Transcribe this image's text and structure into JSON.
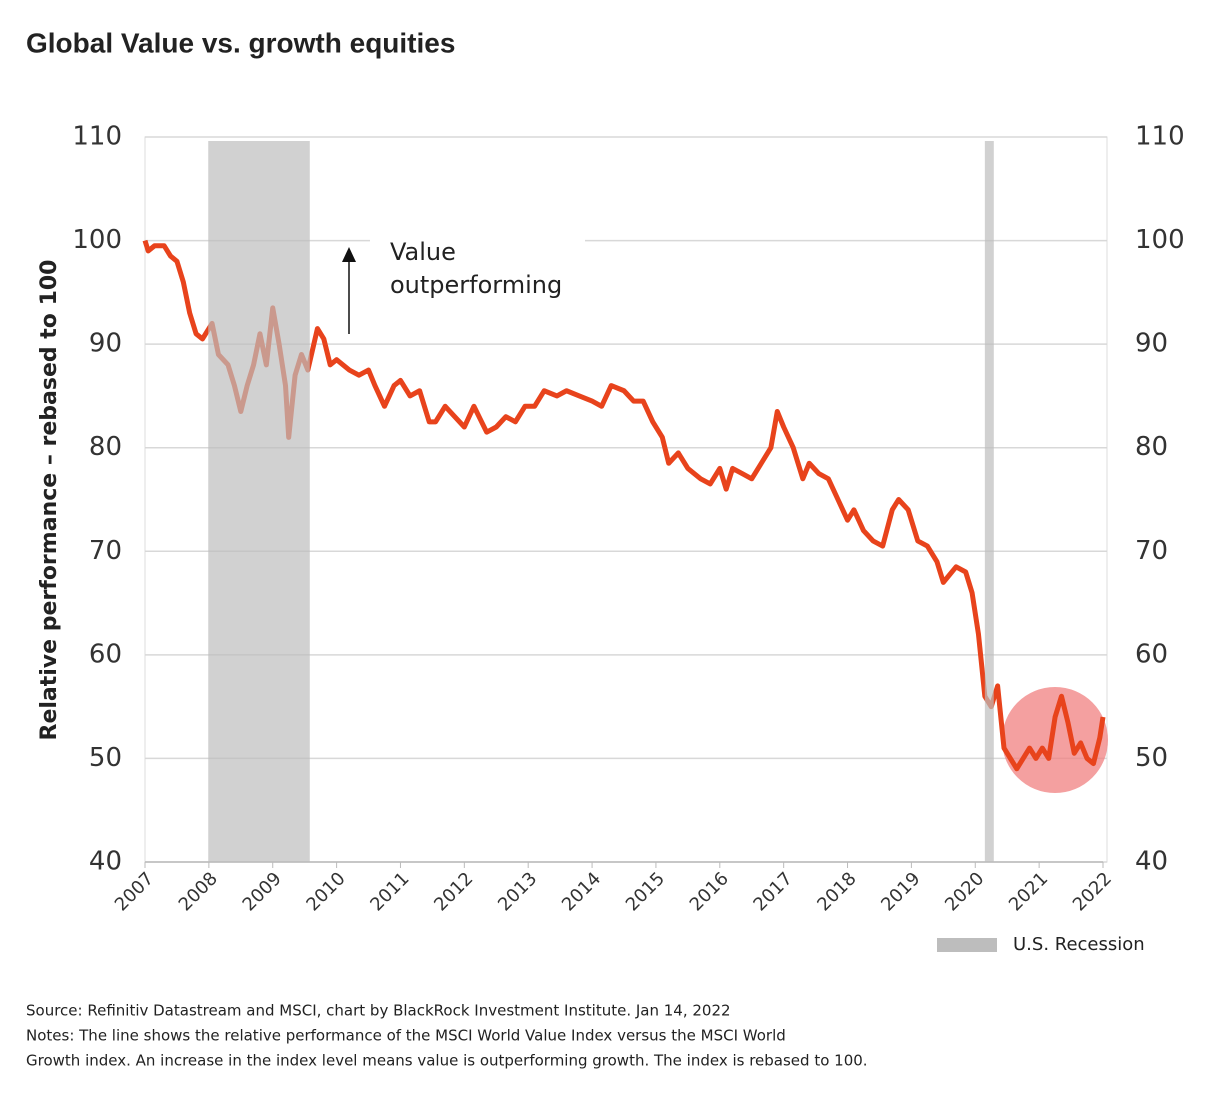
{
  "chart_data": {
    "type": "line",
    "title": "Global Value vs. growth equities",
    "ylabel": "Relative performance – rebased to 100",
    "annotation": [
      "Value",
      "outperforming"
    ],
    "legend_label": "U.S. Recession",
    "recession_color": "#bdbdbd",
    "recessions": [
      [
        2007.99,
        2009.58
      ],
      [
        2020.15,
        2020.29
      ]
    ],
    "xlim": [
      2007,
      2022
    ],
    "xticks": [
      2007,
      2008,
      2009,
      2010,
      2011,
      2012,
      2013,
      2014,
      2015,
      2016,
      2017,
      2018,
      2019,
      2020,
      2021,
      2022
    ],
    "ylim": [
      40,
      110
    ],
    "yticks": [
      40,
      50,
      60,
      70,
      80,
      90,
      100,
      110
    ],
    "grid": true,
    "x": [
      2007.0,
      2007.05,
      2007.15,
      2007.3,
      2007.4,
      2007.5,
      2007.6,
      2007.7,
      2007.8,
      2007.9,
      2008.05,
      2008.15,
      2008.3,
      2008.4,
      2008.5,
      2008.6,
      2008.7,
      2008.8,
      2008.9,
      2009.0,
      2009.1,
      2009.2,
      2009.25,
      2009.35,
      2009.45,
      2009.55,
      2009.7,
      2009.8,
      2009.9,
      2010.0,
      2010.2,
      2010.35,
      2010.5,
      2010.6,
      2010.75,
      2010.9,
      2011.0,
      2011.15,
      2011.3,
      2011.45,
      2011.55,
      2011.7,
      2011.85,
      2012.0,
      2012.15,
      2012.35,
      2012.5,
      2012.65,
      2012.8,
      2012.95,
      2013.1,
      2013.25,
      2013.45,
      2013.6,
      2013.8,
      2014.0,
      2014.15,
      2014.3,
      2014.5,
      2014.65,
      2014.8,
      2014.95,
      2015.1,
      2015.2,
      2015.35,
      2015.5,
      2015.7,
      2015.85,
      2016.0,
      2016.1,
      2016.2,
      2016.35,
      2016.5,
      2016.65,
      2016.8,
      2016.9,
      2017.0,
      2017.15,
      2017.3,
      2017.4,
      2017.55,
      2017.7,
      2017.85,
      2018.0,
      2018.1,
      2018.25,
      2018.4,
      2018.55,
      2018.7,
      2018.8,
      2018.95,
      2019.1,
      2019.25,
      2019.4,
      2019.5,
      2019.7,
      2019.85,
      2019.95,
      2020.05,
      2020.15,
      2020.25,
      2020.35,
      2020.45,
      2020.55,
      2020.65,
      2020.75,
      2020.85,
      2020.95,
      2021.05,
      2021.15,
      2021.25,
      2021.35,
      2021.45,
      2021.55,
      2021.65,
      2021.75,
      2021.85,
      2021.95,
      2022.0
    ],
    "series": [
      {
        "color": "#e8431c",
        "values": [
          100,
          99,
          99.5,
          99.5,
          98.5,
          98,
          96,
          93,
          91,
          90.5,
          92,
          89,
          88,
          86,
          83.5,
          86,
          88,
          91,
          88,
          93.5,
          90,
          86,
          81,
          87,
          89,
          87.5,
          91.5,
          90.5,
          88,
          88.5,
          87.5,
          87,
          87.5,
          86,
          84,
          86,
          86.5,
          85,
          85.5,
          82.5,
          82.5,
          84,
          83,
          82,
          84,
          81.5,
          82,
          83,
          82.5,
          84,
          84,
          85.5,
          85,
          85.5,
          85,
          84.5,
          84,
          86,
          85.5,
          84.5,
          84.5,
          82.5,
          81,
          78.5,
          79.5,
          78,
          77,
          76.5,
          78,
          76,
          78,
          77.5,
          77,
          78.5,
          80,
          83.5,
          82,
          80,
          77,
          78.5,
          77.5,
          77,
          75,
          73,
          74,
          72,
          71,
          70.5,
          74,
          75,
          74,
          71,
          70.5,
          69,
          67,
          68.5,
          68,
          66,
          62,
          56,
          55,
          57,
          51,
          50,
          49,
          50,
          51,
          50,
          51,
          50,
          54,
          56,
          53.5,
          50.5,
          51.5,
          50,
          49.5,
          52,
          54
        ]
      }
    ],
    "source": "Source: Refinitiv Datastream and MSCI, chart by BlackRock Investment Institute. Jan 14, 2022",
    "notes": [
      "Notes: The line shows the relative performance of the MSCI World Value Index versus the MSCI World",
      "Growth index. An increase in the index level means value is outperforming growth. The index is rebased to 100."
    ]
  }
}
